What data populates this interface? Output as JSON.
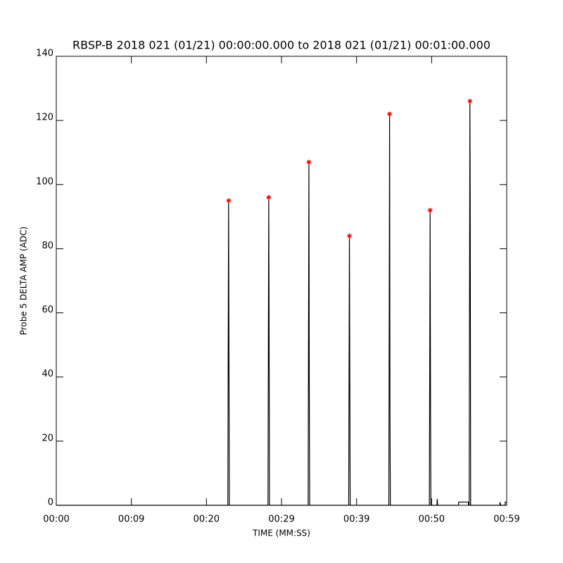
{
  "chart_data": {
    "type": "line",
    "title": "RBSP-B 2018 021 (01/21) 00:00:00.000 to 2018 021 (01/21) 00:01:00.000",
    "xlabel": "TIME (MM:SS)",
    "ylabel": "Probe 5 DELTA AMP (ADC)",
    "x": [
      0,
      22.85,
      22.95,
      23.0,
      23.05,
      28.2,
      28.3,
      28.35,
      28.4,
      33.55,
      33.65,
      33.7,
      33.75,
      38.95,
      39.05,
      39.1,
      39.15,
      44.3,
      44.4,
      44.45,
      44.5,
      49.7,
      49.8,
      49.85,
      49.9,
      50.7,
      50.75,
      50.8,
      53.6,
      53.6,
      54.9,
      54.9,
      55.0,
      55.1,
      55.15,
      55.2,
      59.1,
      59.1,
      59.2,
      59.8,
      59.8,
      60
    ],
    "values": [
      0,
      0,
      95,
      50,
      0,
      0,
      96,
      55,
      0,
      0,
      107,
      40,
      0,
      0,
      84,
      40,
      0,
      0,
      122,
      30,
      0,
      0,
      92,
      35,
      0,
      0,
      2,
      0,
      0,
      1,
      1,
      0,
      0,
      126,
      85,
      0,
      0,
      1,
      0,
      0,
      1,
      1
    ],
    "color": "#000000",
    "markers": {
      "x": [
        22.97,
        28.3,
        33.65,
        39.05,
        44.4,
        49.8,
        55.1
      ],
      "values": [
        95,
        96,
        107,
        84,
        122,
        92,
        126
      ],
      "color": "#ff0000"
    },
    "xlim": [
      0,
      60
    ],
    "ylim": [
      0,
      140
    ],
    "xticks": [
      {
        "value": 0,
        "label": "00:00"
      },
      {
        "value": 10,
        "label": "00:09"
      },
      {
        "value": 20,
        "label": "00:20"
      },
      {
        "value": 30,
        "label": "00:29"
      },
      {
        "value": 40,
        "label": "00:39"
      },
      {
        "value": 50,
        "label": "00:50"
      },
      {
        "value": 60,
        "label": "00:59"
      }
    ],
    "yticks": [
      0,
      20,
      40,
      60,
      80,
      100,
      120,
      140
    ]
  }
}
